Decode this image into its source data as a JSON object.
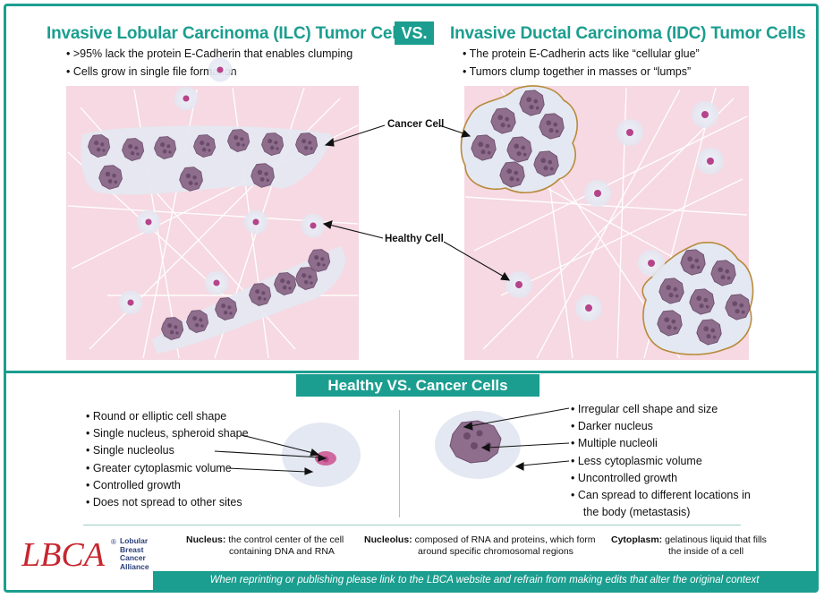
{
  "header": {
    "left_title": "Invasive Lobular Carcinoma (ILC) Tumor Cells",
    "vs": "VS.",
    "right_title": "Invasive Ductal Carcinoma (IDC) Tumor Cells"
  },
  "ilc_bullets": [
    "•  >95% lack the protein E-Cadherin that enables clumping",
    "•  Cells grow in single file formation"
  ],
  "idc_bullets": [
    "•  The protein E-Cadherin acts like “cellular glue”",
    "•  Tumors clump together in masses or “lumps”"
  ],
  "labels": {
    "cancer_cell": "Cancer Cell",
    "healthy_cell": "Healthy Cell"
  },
  "comparison": {
    "title": "Healthy VS. Cancer Cells",
    "healthy": [
      "•  Round or elliptic cell shape",
      "•  Single nucleus, spheroid shape",
      "•  Single nucleolus",
      "•  Greater cytoplasmic volume",
      "•  Controlled growth",
      "•  Does not spread to other sites"
    ],
    "cancer": [
      "•  Irregular cell shape and size",
      "•  Darker nucleus",
      "•  Multiple nucleoli",
      "•  Less cytoplasmic volume",
      "•  Uncontrolled growth",
      "•  Can spread to different locations in",
      "    the body (metastasis)"
    ]
  },
  "definitions": {
    "nucleus_term": "Nucleus:",
    "nucleus_def_1": "the control center of the cell",
    "nucleus_def_2": "containing DNA and RNA",
    "nucleolus_term": "Nucleolus:",
    "nucleolus_def_1": "composed of RNA and proteins, which form",
    "nucleolus_def_2": "around specific chromosomal regions",
    "cytoplasm_term": "Cytoplasm:",
    "cytoplasm_def_1": "gelatinous liquid that fills",
    "cytoplasm_def_2": "the inside of a cell"
  },
  "logo": {
    "mark": "LBCA",
    "line1": "Lobular",
    "line2": "Breast",
    "line3": "Cancer",
    "line4": "Alliance",
    "registered": "®"
  },
  "footer": "When reprinting or publishing please link to the LBCA website and refrain from making edits that alter the original context",
  "colors": {
    "teal": "#1b9e8f",
    "panel_pink": "#f6d9e2",
    "cancer_purple": "#8e6d8d",
    "nucleus_magenta": "#b5448a",
    "halo": "#e6eaf3",
    "cluster_outline": "#b88a3a"
  }
}
